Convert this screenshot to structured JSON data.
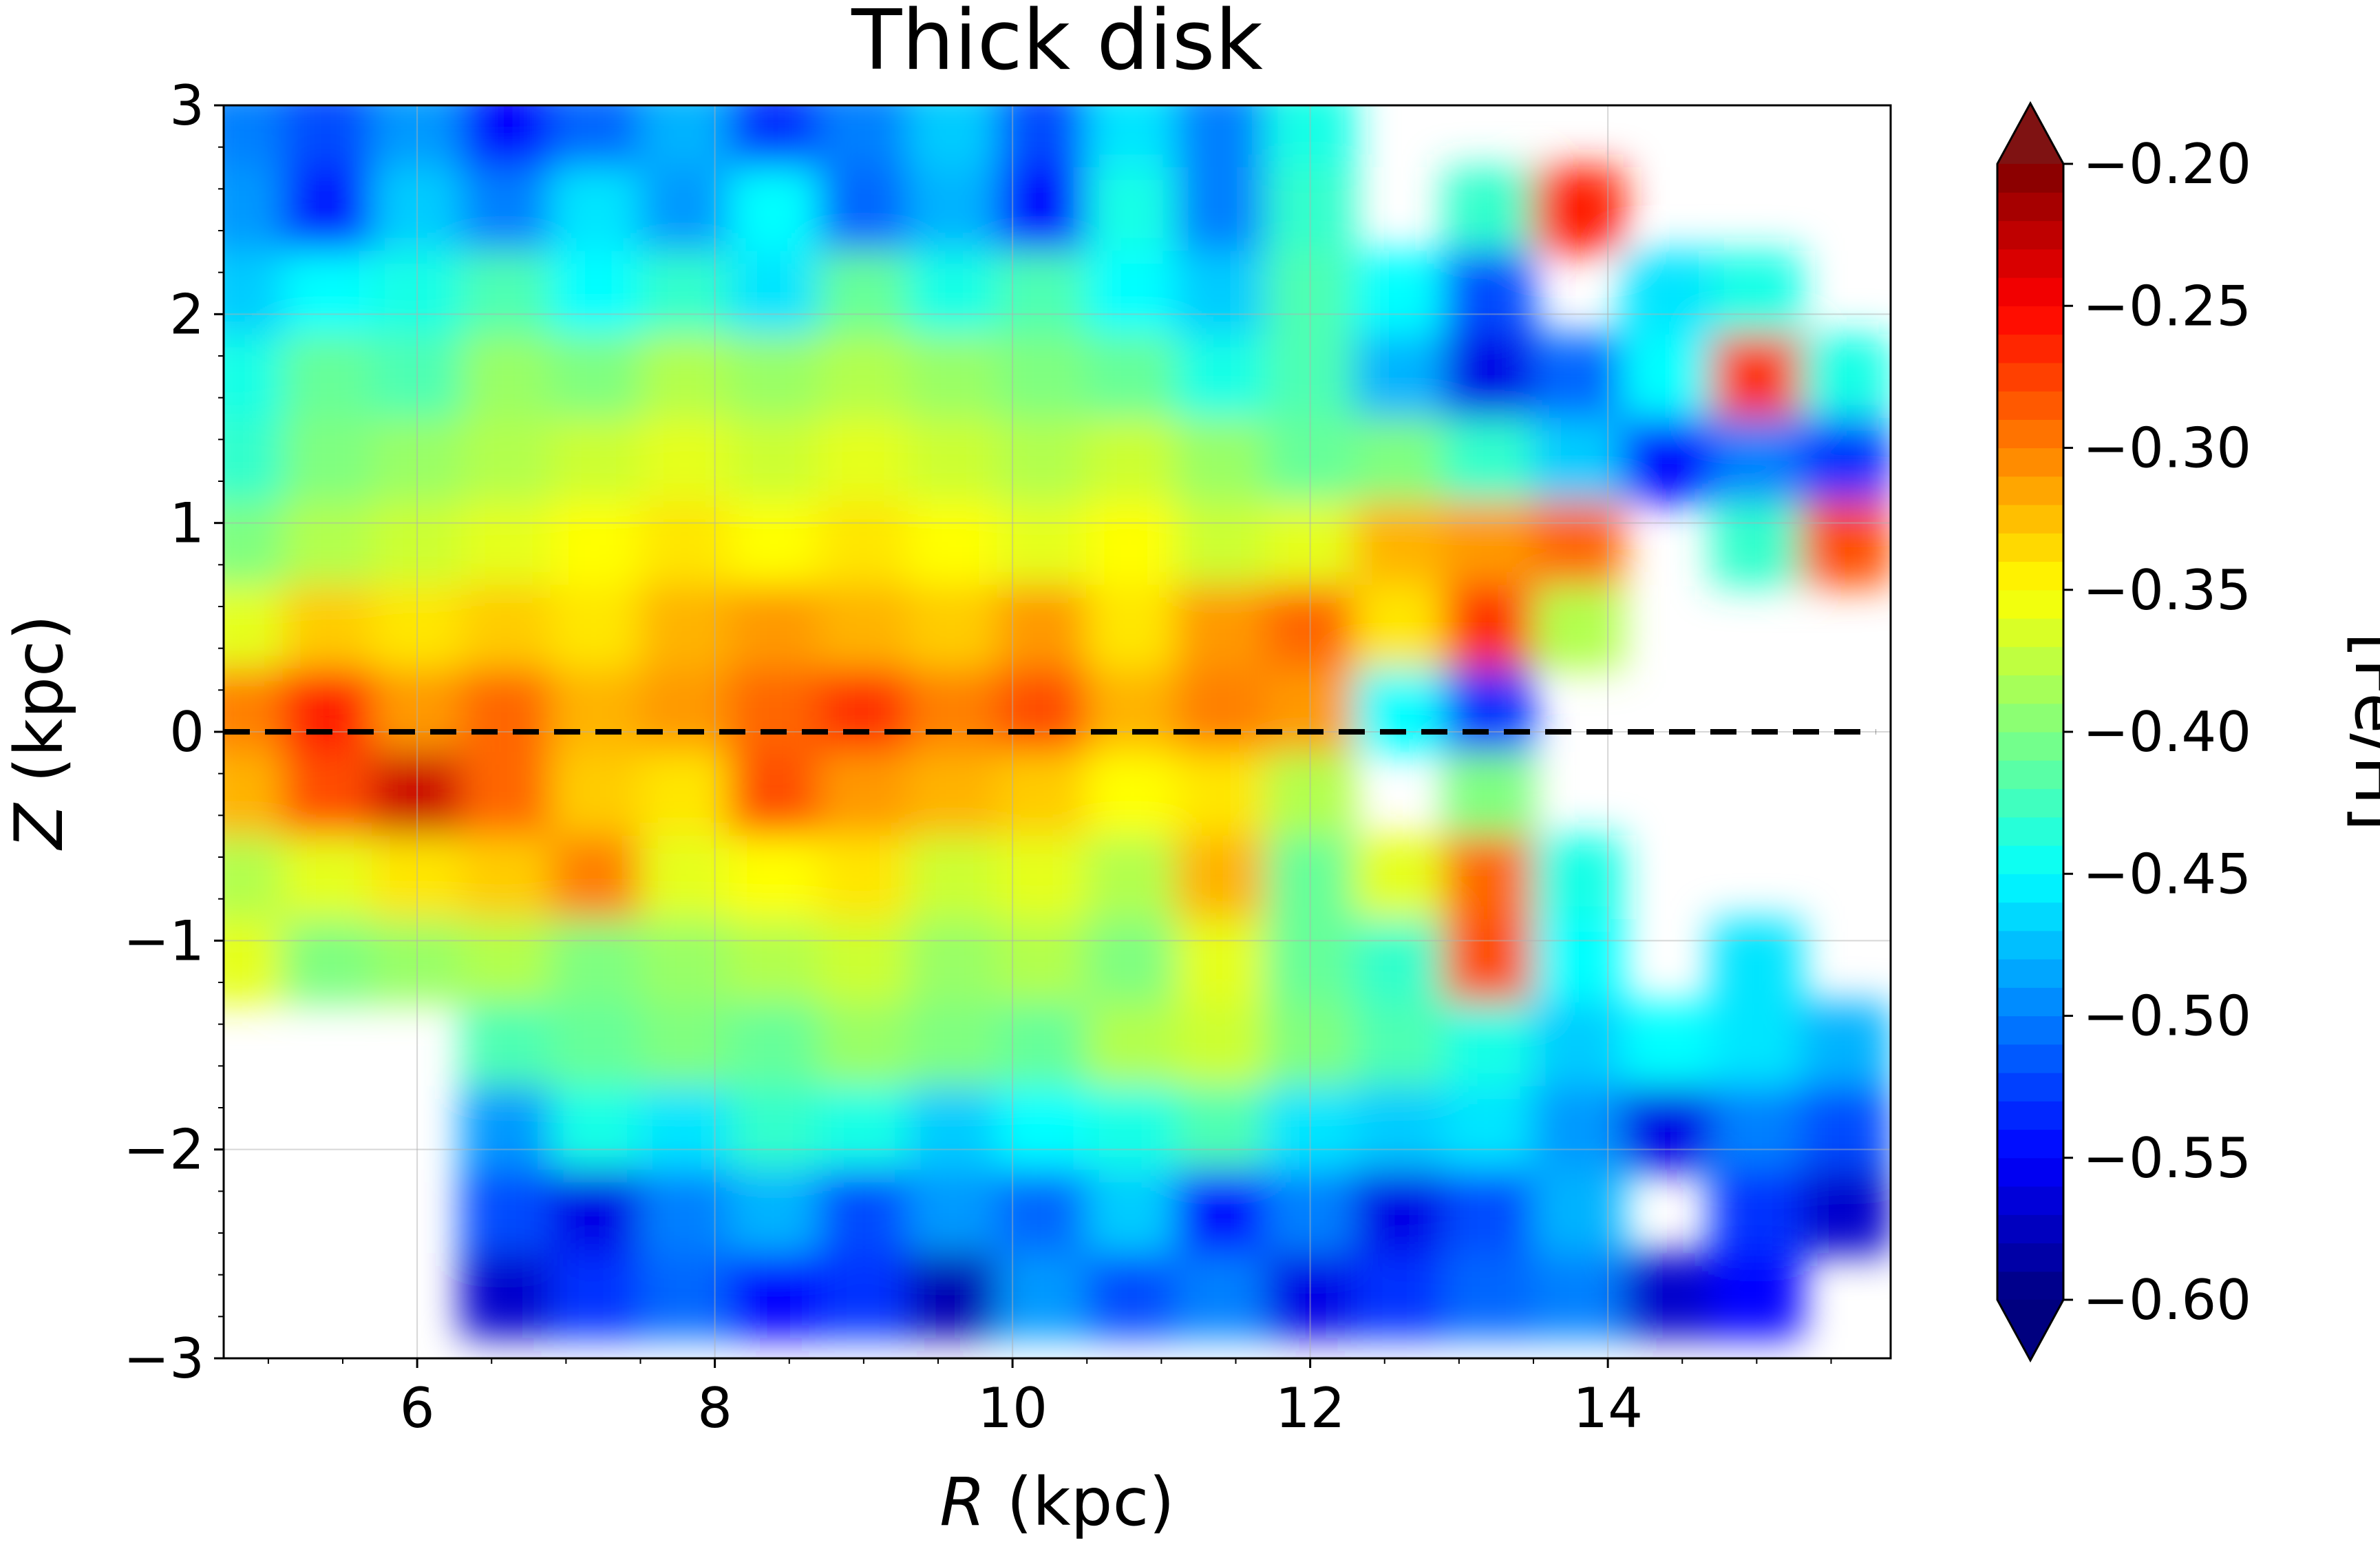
{
  "chart_data": {
    "type": "heatmap",
    "title": "Thick disk",
    "xlabel_var": "R",
    "xlabel_unit": " (kpc)",
    "ylabel_var": "Z",
    "ylabel_unit": " (kpc)",
    "colorbar_label": "[Fe/H]",
    "xlim": [
      4.7,
      15.9
    ],
    "ylim": [
      -3,
      3
    ],
    "xticks": [
      6,
      8,
      10,
      12,
      14
    ],
    "xtick_labels": [
      "6",
      "8",
      "10",
      "12",
      "14"
    ],
    "yticks": [
      -3,
      -2,
      -1,
      0,
      1,
      2,
      3
    ],
    "ytick_labels": [
      "−3",
      "−2",
      "−1",
      "0",
      "1",
      "2",
      "3"
    ],
    "color_range": [
      -0.6,
      -0.2
    ],
    "colorbar_ticks": [
      -0.6,
      -0.55,
      -0.5,
      -0.45,
      -0.4,
      -0.35,
      -0.3,
      -0.25,
      -0.2
    ],
    "colorbar_tick_labels": [
      "−0.60",
      "−0.55",
      "−0.50",
      "−0.45",
      "−0.40",
      "−0.35",
      "−0.30",
      "−0.25",
      "−0.20"
    ],
    "colorbar_extend": "both",
    "colormap": "jet",
    "reference_line": {
      "y": 0,
      "style": "dashed",
      "color": "#000000"
    },
    "grid": true,
    "grid_r": [
      4.8,
      5.4,
      6.0,
      6.6,
      7.2,
      7.8,
      8.4,
      9.0,
      9.6,
      10.2,
      10.8,
      11.4,
      12.0,
      12.6,
      13.2,
      13.8,
      14.4,
      15.0,
      15.6
    ],
    "grid_z": [
      2.9,
      2.5,
      2.1,
      1.7,
      1.3,
      0.9,
      0.5,
      0.1,
      -0.3,
      -0.7,
      -1.1,
      -1.5,
      -1.9,
      -2.3,
      -2.7
    ],
    "feh_values": [
      [
        -0.5,
        -0.52,
        -0.49,
        -0.55,
        -0.51,
        -0.48,
        -0.53,
        -0.5,
        -0.47,
        -0.52,
        -0.46,
        -0.5,
        -0.44,
        null,
        null,
        null,
        null,
        null,
        null
      ],
      [
        -0.49,
        -0.54,
        -0.47,
        -0.5,
        -0.46,
        -0.49,
        -0.45,
        -0.51,
        -0.48,
        -0.55,
        -0.44,
        -0.5,
        -0.43,
        null,
        -0.43,
        -0.26,
        null,
        null,
        null
      ],
      [
        -0.47,
        -0.45,
        -0.44,
        -0.42,
        -0.45,
        -0.43,
        -0.46,
        -0.41,
        -0.44,
        -0.42,
        -0.45,
        -0.47,
        -0.42,
        -0.45,
        -0.52,
        null,
        -0.46,
        -0.44,
        null
      ],
      [
        -0.44,
        -0.41,
        -0.42,
        -0.39,
        -0.4,
        -0.38,
        -0.39,
        -0.38,
        -0.39,
        -0.4,
        -0.41,
        -0.44,
        -0.42,
        -0.48,
        -0.56,
        -0.51,
        -0.45,
        -0.27,
        -0.44
      ],
      [
        -0.43,
        -0.4,
        -0.39,
        -0.38,
        -0.37,
        -0.36,
        -0.37,
        -0.36,
        -0.37,
        -0.38,
        -0.37,
        -0.39,
        -0.41,
        -0.4,
        -0.43,
        -0.47,
        -0.55,
        -0.5,
        -0.53
      ],
      [
        -0.4,
        -0.38,
        -0.37,
        -0.36,
        -0.35,
        -0.34,
        -0.35,
        -0.34,
        -0.35,
        -0.36,
        -0.35,
        -0.37,
        -0.36,
        -0.32,
        -0.31,
        -0.29,
        null,
        -0.43,
        -0.28
      ],
      [
        -0.36,
        -0.33,
        -0.34,
        -0.33,
        -0.34,
        -0.32,
        -0.31,
        -0.32,
        -0.33,
        -0.31,
        -0.34,
        -0.31,
        -0.29,
        -0.34,
        -0.27,
        -0.38,
        null,
        null,
        null
      ],
      [
        -0.3,
        -0.26,
        -0.31,
        -0.29,
        -0.32,
        -0.31,
        -0.29,
        -0.27,
        -0.3,
        -0.28,
        -0.32,
        -0.3,
        -0.31,
        -0.45,
        -0.53,
        null,
        null,
        null,
        null
      ],
      [
        -0.32,
        -0.28,
        -0.23,
        -0.29,
        -0.33,
        -0.34,
        -0.28,
        -0.31,
        -0.32,
        -0.33,
        -0.35,
        -0.34,
        -0.38,
        null,
        -0.4,
        null,
        null,
        null,
        null
      ],
      [
        -0.38,
        -0.36,
        -0.34,
        -0.33,
        -0.3,
        -0.36,
        -0.35,
        -0.34,
        -0.37,
        -0.36,
        -0.38,
        -0.32,
        -0.41,
        -0.36,
        -0.29,
        -0.44,
        null,
        null,
        null
      ],
      [
        -0.36,
        -0.4,
        -0.39,
        -0.38,
        -0.4,
        -0.39,
        -0.38,
        -0.37,
        -0.39,
        -0.38,
        -0.4,
        -0.36,
        -0.41,
        -0.43,
        -0.28,
        -0.45,
        null,
        -0.46,
        null
      ],
      [
        null,
        null,
        null,
        -0.42,
        -0.41,
        -0.4,
        -0.41,
        -0.39,
        -0.4,
        -0.41,
        -0.38,
        -0.37,
        -0.4,
        -0.42,
        -0.44,
        -0.47,
        -0.45,
        -0.46,
        -0.48
      ],
      [
        null,
        null,
        null,
        -0.49,
        -0.44,
        -0.46,
        -0.43,
        -0.44,
        -0.47,
        -0.45,
        -0.44,
        -0.42,
        -0.46,
        -0.47,
        -0.46,
        -0.49,
        -0.56,
        -0.5,
        -0.52
      ],
      [
        null,
        null,
        null,
        -0.52,
        -0.56,
        -0.5,
        -0.48,
        -0.52,
        -0.49,
        -0.51,
        -0.47,
        -0.55,
        -0.5,
        -0.56,
        -0.52,
        -0.48,
        null,
        -0.53,
        -0.57
      ],
      [
        null,
        null,
        null,
        -0.57,
        -0.53,
        -0.51,
        -0.55,
        -0.53,
        -0.58,
        -0.49,
        -0.52,
        -0.5,
        -0.56,
        -0.53,
        -0.51,
        -0.5,
        -0.57,
        -0.55,
        null
      ]
    ]
  }
}
